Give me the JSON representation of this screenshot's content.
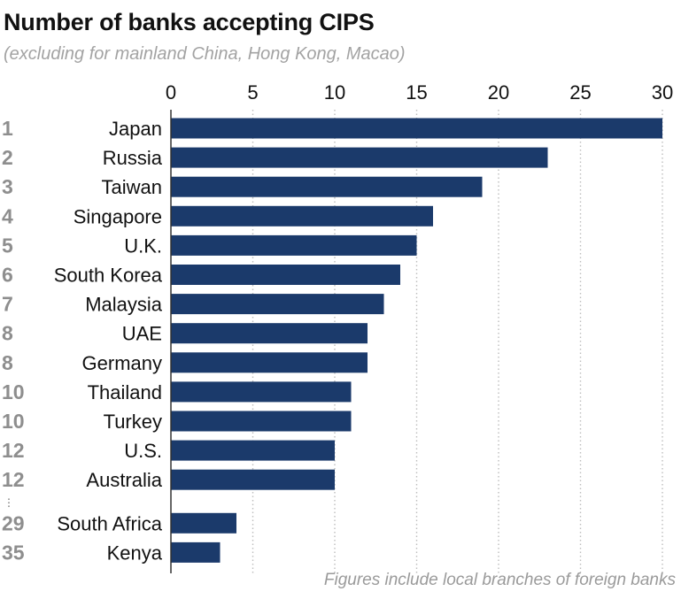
{
  "title": "Number of banks accepting CIPS",
  "subtitle": "(excluding for mainland China, Hong Kong, Macao)",
  "note": "Figures include local branches of foreign banks",
  "colors": {
    "bar": "#1b3a6b",
    "rank": "#8e8e8e",
    "grid": "#bdbdbd",
    "axis": "#333333"
  },
  "chart_data": {
    "type": "bar",
    "orientation": "horizontal",
    "title": "Number of banks accepting CIPS",
    "subtitle": "(excluding for mainland China, Hong Kong, Macao)",
    "xlim": [
      0,
      30
    ],
    "xticks": [
      "0",
      "5",
      "10",
      "15",
      "20",
      "25",
      "30"
    ],
    "grid": "vertical dotted",
    "rows": [
      {
        "rank": "1",
        "category": "Japan",
        "value": 30
      },
      {
        "rank": "2",
        "category": "Russia",
        "value": 23
      },
      {
        "rank": "3",
        "category": "Taiwan",
        "value": 19
      },
      {
        "rank": "4",
        "category": "Singapore",
        "value": 16
      },
      {
        "rank": "5",
        "category": "U.K.",
        "value": 15
      },
      {
        "rank": "6",
        "category": "South Korea",
        "value": 14
      },
      {
        "rank": "7",
        "category": "Malaysia",
        "value": 13
      },
      {
        "rank": "8",
        "category": "UAE",
        "value": 12
      },
      {
        "rank": "8",
        "category": "Germany",
        "value": 12
      },
      {
        "rank": "10",
        "category": "Thailand",
        "value": 11
      },
      {
        "rank": "10",
        "category": "Turkey",
        "value": 11
      },
      {
        "rank": "12",
        "category": "U.S.",
        "value": 10
      },
      {
        "rank": "12",
        "category": "Australia",
        "value": 10
      },
      {
        "rank": "29",
        "category": "South Africa",
        "value": 4
      },
      {
        "rank": "35",
        "category": "Kenya",
        "value": 3
      }
    ],
    "annotation": "Figures include local branches of foreign banks"
  }
}
